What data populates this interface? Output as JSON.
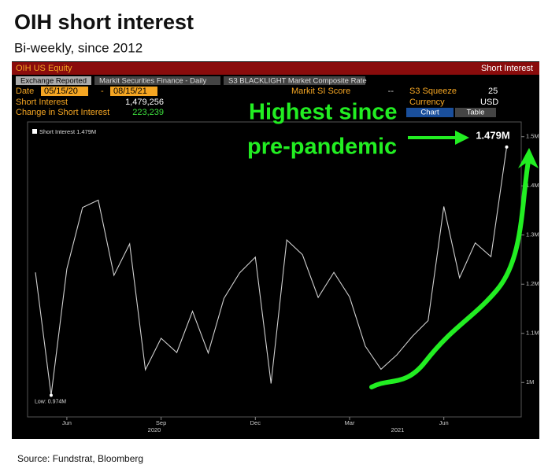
{
  "header": {
    "title": "OIH short interest",
    "subtitle": "Bi-weekly, since 2012"
  },
  "terminal": {
    "ticker": "OIH US Equity",
    "panel_title": "Short Interest",
    "tabs": [
      "Exchange Reported",
      "Markit Securities Finance - Daily",
      "S3 BLACKLIGHT Market Composite Rate"
    ],
    "date_label": "Date",
    "date_from": "05/15/20",
    "date_sep": "-",
    "date_to": "08/15/21",
    "markit_label": "Markit SI Score",
    "markit_value": "--",
    "squeeze_label": "S3 Squeeze",
    "squeeze_value": "25",
    "si_label": "Short Interest",
    "si_value": "1,479,256",
    "currency_label": "Currency",
    "currency_value": "USD",
    "change_label": "Change in Short Interest",
    "change_value": "223,239",
    "buttons": [
      "Chart",
      "Table"
    ]
  },
  "chart_data": {
    "type": "line",
    "legend": "Short Interest 1.479M",
    "categories": [
      null,
      null,
      "Jun",
      null,
      null,
      null,
      null,
      null,
      "Sep",
      null,
      null,
      null,
      null,
      null,
      "Dec",
      null,
      null,
      null,
      null,
      null,
      "Mar",
      null,
      null,
      null,
      null,
      null,
      "Jun",
      null,
      null,
      null,
      null
    ],
    "year_labels": [
      "2020",
      "2021"
    ],
    "series": [
      {
        "name": "Short Interest",
        "color": "#d0d0d0",
        "values": [
          1.224,
          0.974,
          1.231,
          1.356,
          1.371,
          1.218,
          1.282,
          1.026,
          1.09,
          1.061,
          1.145,
          1.06,
          1.171,
          1.223,
          1.255,
          0.998,
          1.29,
          1.26,
          1.173,
          1.224,
          1.174,
          1.074,
          1.027,
          1.056,
          1.094,
          1.126,
          1.358,
          1.213,
          1.284,
          1.256,
          1.479
        ]
      }
    ],
    "ylim": [
      0.93,
      1.53
    ],
    "yticks": [
      {
        "value": 1,
        "label": "1M"
      },
      {
        "value": 1.1,
        "label": "1.1M"
      },
      {
        "value": 1.2,
        "label": "1.2M"
      },
      {
        "value": 1.3,
        "label": "1.3M"
      },
      {
        "value": 1.4,
        "label": "1.4M"
      },
      {
        "value": 1.5,
        "label": "1.5M"
      }
    ],
    "low_label": "Low: 0.974M",
    "last_label": "1.479M",
    "annotation": [
      "Highest since",
      "pre-pandemic"
    ],
    "annotation_color": "#22ee22"
  },
  "source": "Source: Fundstrat, Bloomberg"
}
